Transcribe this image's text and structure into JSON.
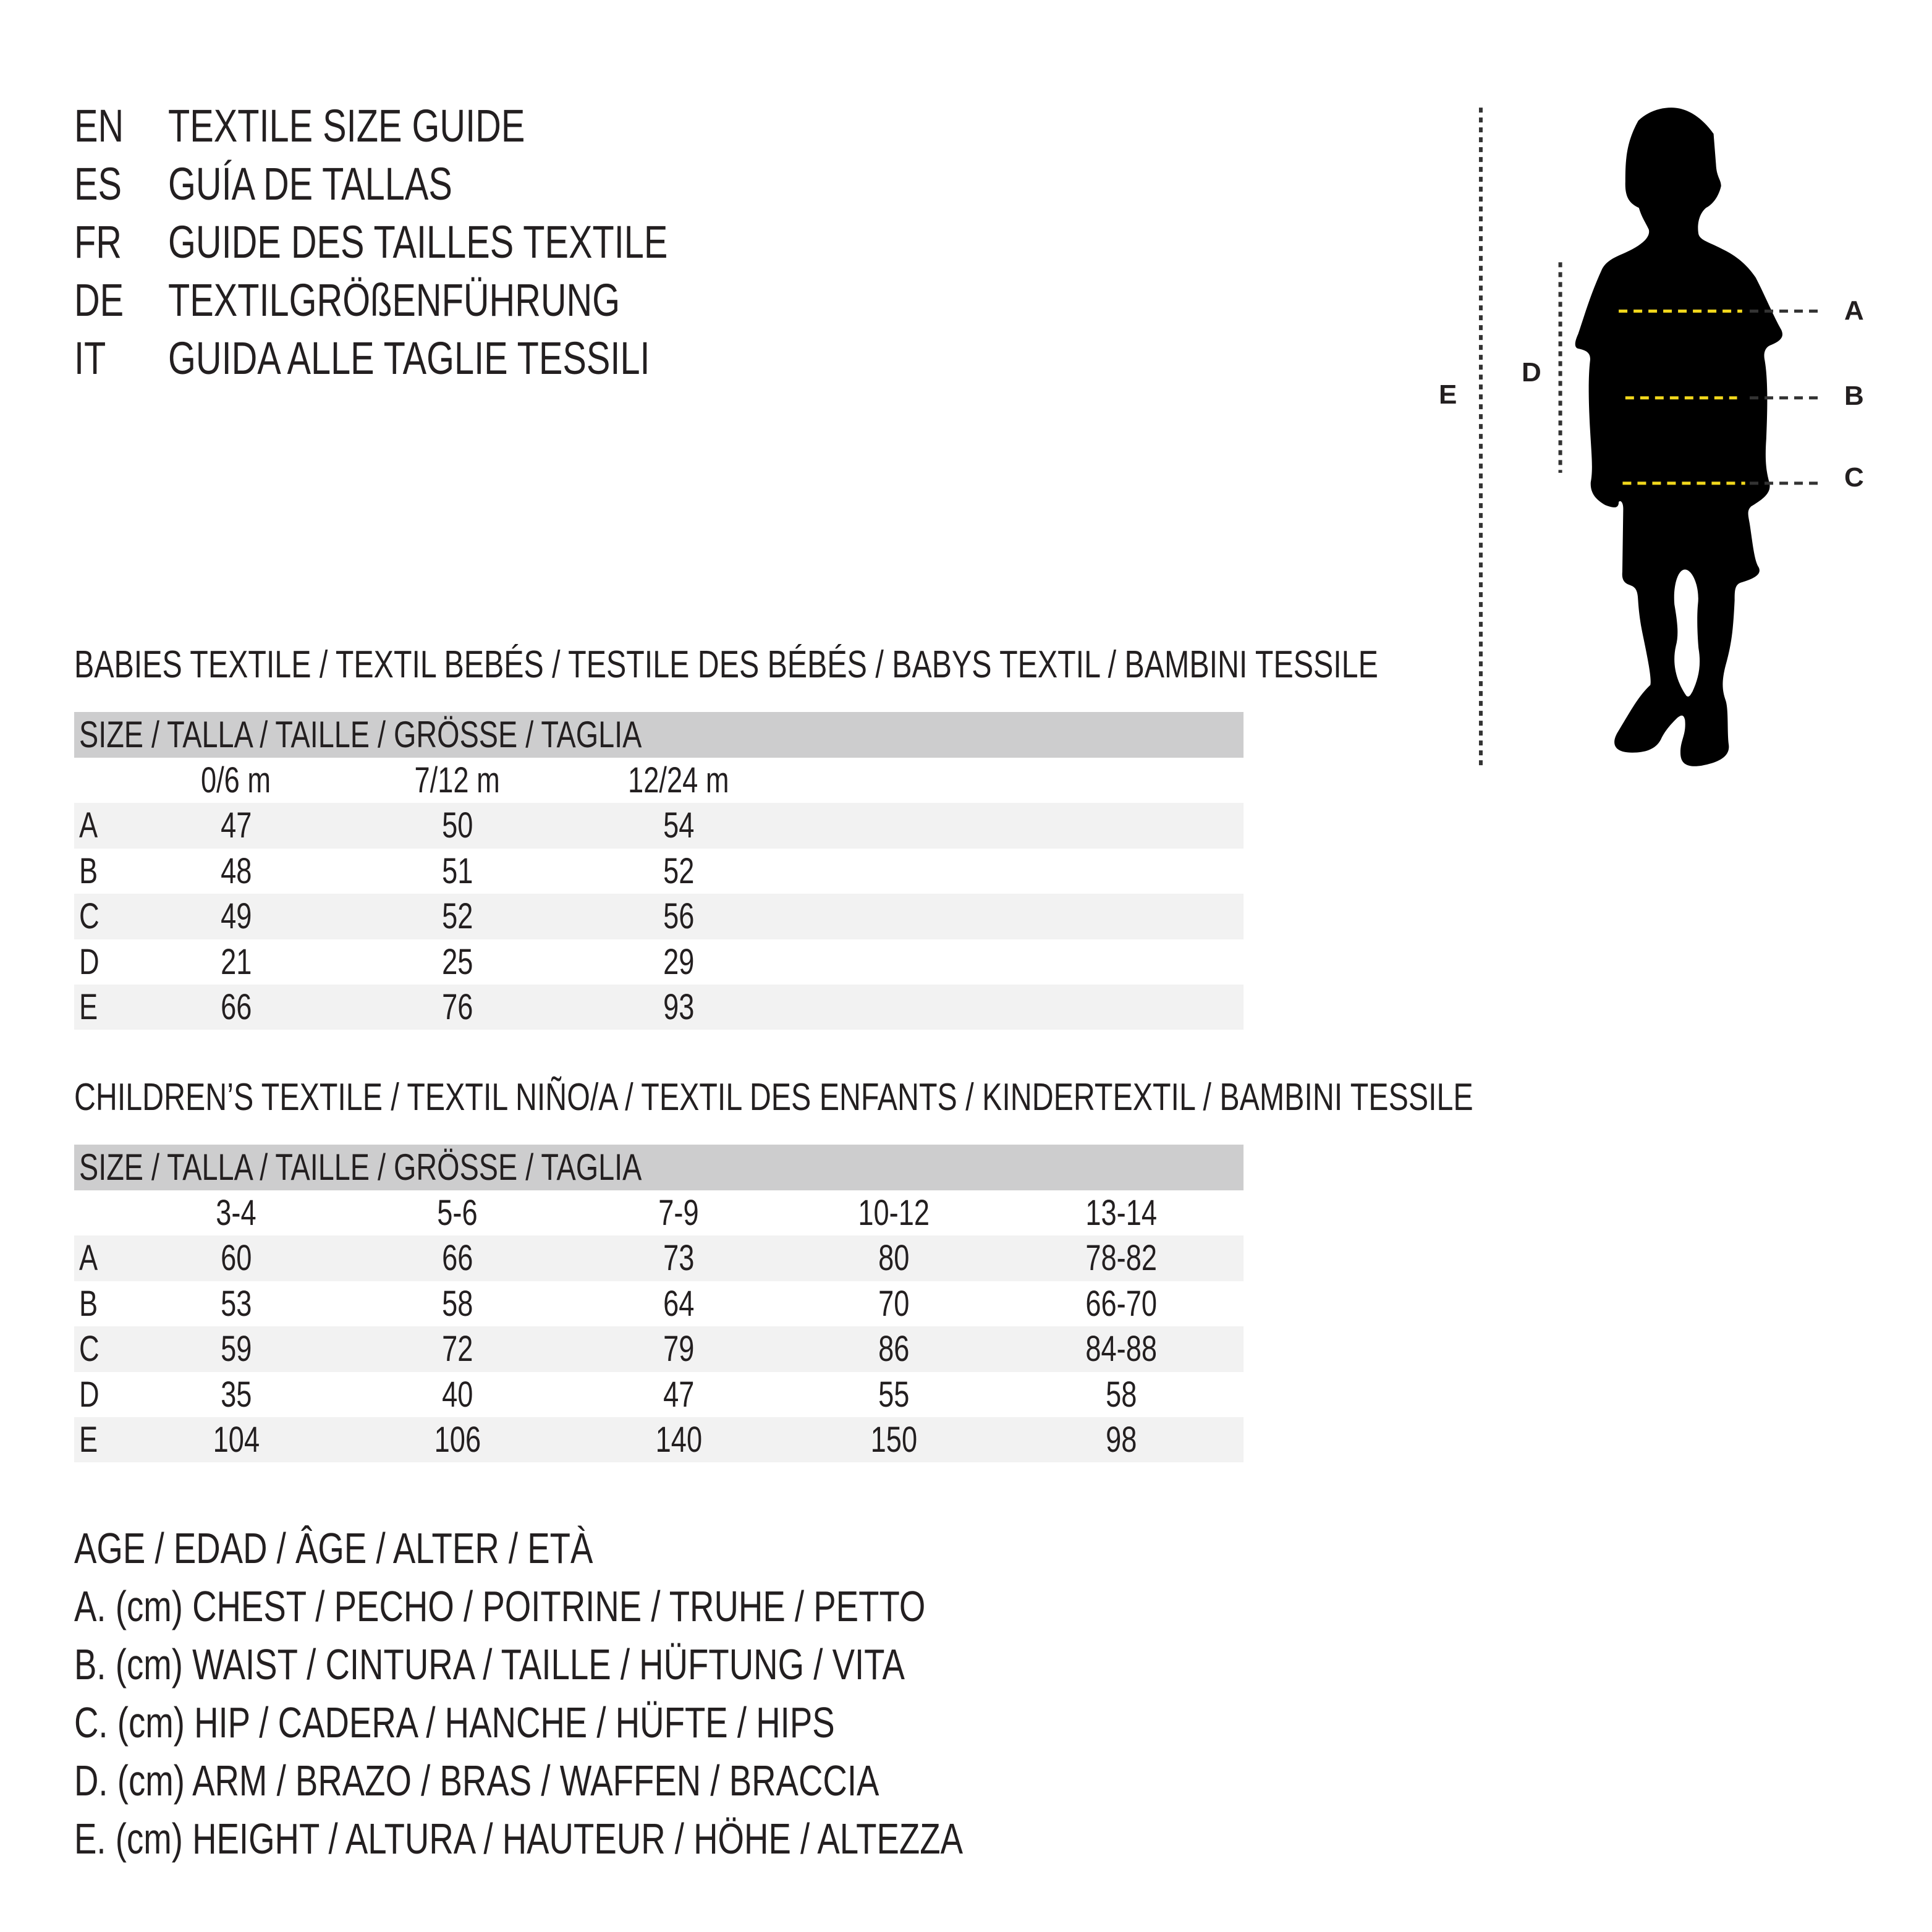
{
  "title_lines": [
    {
      "code": "EN",
      "text": "TEXTILE SIZE GUIDE"
    },
    {
      "code": "ES",
      "text": "GUÍA DE TALLAS"
    },
    {
      "code": "FR",
      "text": "GUIDE DES TAILLES TEXTILE"
    },
    {
      "code": "DE",
      "text": "TEXTILGRÖßENFÜHRUNG"
    },
    {
      "code": "IT",
      "text": "GUIDA ALLE TAGLIE TESSILI"
    }
  ],
  "babies": {
    "heading": "BABIES TEXTILE / TEXTIL BEBÉS / TESTILE DES BÉBÉS / BABYS TEXTIL / BAMBINI TESSILE",
    "size_header": "SIZE / TALLA / TAILLE / GRÖSSE / TAGLIA",
    "columns": [
      "0/6 m",
      "7/12 m",
      "12/24 m"
    ],
    "rows": [
      {
        "label": "A",
        "values": [
          "47",
          "50",
          "54"
        ]
      },
      {
        "label": "B",
        "values": [
          "48",
          "51",
          "52"
        ]
      },
      {
        "label": "C",
        "values": [
          "49",
          "52",
          "56"
        ]
      },
      {
        "label": "D",
        "values": [
          "21",
          "25",
          "29"
        ]
      },
      {
        "label": "E",
        "values": [
          "66",
          "76",
          "93"
        ]
      }
    ]
  },
  "children": {
    "heading": "CHILDREN’S TEXTILE / TEXTIL NIÑO/A / TEXTIL DES ENFANTS / KINDERTEXTIL / BAMBINI TESSILE",
    "size_header": "SIZE / TALLA / TAILLE / GRÖSSE / TAGLIA",
    "columns": [
      "3-4",
      "5-6",
      "7-9",
      "10-12",
      "13-14"
    ],
    "rows": [
      {
        "label": "A",
        "values": [
          "60",
          "66",
          "73",
          "80",
          "78-82"
        ]
      },
      {
        "label": "B",
        "values": [
          "53",
          "58",
          "64",
          "70",
          "66-70"
        ]
      },
      {
        "label": "C",
        "values": [
          "59",
          "72",
          "79",
          "86",
          "84-88"
        ]
      },
      {
        "label": "D",
        "values": [
          "35",
          "40",
          "47",
          "55",
          "58"
        ]
      },
      {
        "label": "E",
        "values": [
          "104",
          "106",
          "140",
          "150",
          "98"
        ]
      }
    ]
  },
  "legend": [
    "AGE / EDAD / ÂGE / ALTER / ETÀ",
    "A. (cm) CHEST / PECHO / POITRINE / TRUHE / PETTO",
    "B. (cm) WAIST / CINTURA / TAILLE / HÜFTUNG / VITA",
    "C. (cm) HIP / CADERA / HANCHE / HÜFTE / HIPS",
    "D. (cm) ARM / BRAZO / BRAS / WAFFEN / BRACCIA",
    "E. (cm) HEIGHT / ALTURA / HAUTEUR / HÖHE / ALTEZZA"
  ],
  "figure": {
    "labels": {
      "A": "A",
      "B": "B",
      "C": "C",
      "D": "D",
      "E": "E"
    },
    "icon": "child-silhouette-icon",
    "colors": {
      "silhouette": "#000000",
      "measure_line": "#f2d81c",
      "guide_line": "#333333",
      "row_shade": "#f2f2f2",
      "header_shade": "#cdcdce"
    }
  }
}
